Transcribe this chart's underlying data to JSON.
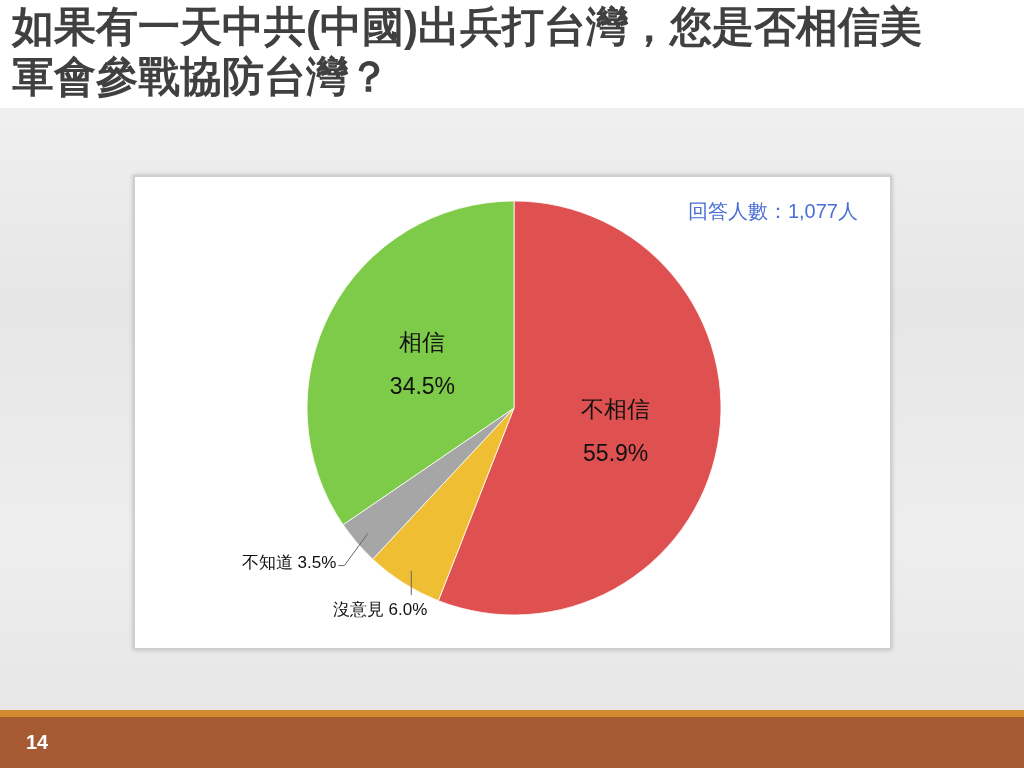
{
  "chart_data": {
    "type": "pie",
    "title": "如果有一天中共(中國)出兵打台灣，您是否相信美軍會參戰協防台灣？",
    "categories": [
      "不相信",
      "沒意見",
      "不知道",
      "相信"
    ],
    "values": [
      55.9,
      6.0,
      3.5,
      34.5
    ],
    "colors": [
      "#df5050",
      "#f0be32",
      "#a6a6a6",
      "#7dcb48"
    ],
    "value_labels": [
      "55.9%",
      "6.0%",
      "3.5%",
      "34.5%"
    ],
    "annotations": [
      "回答人數：1,077人",
      "14"
    ]
  }
}
